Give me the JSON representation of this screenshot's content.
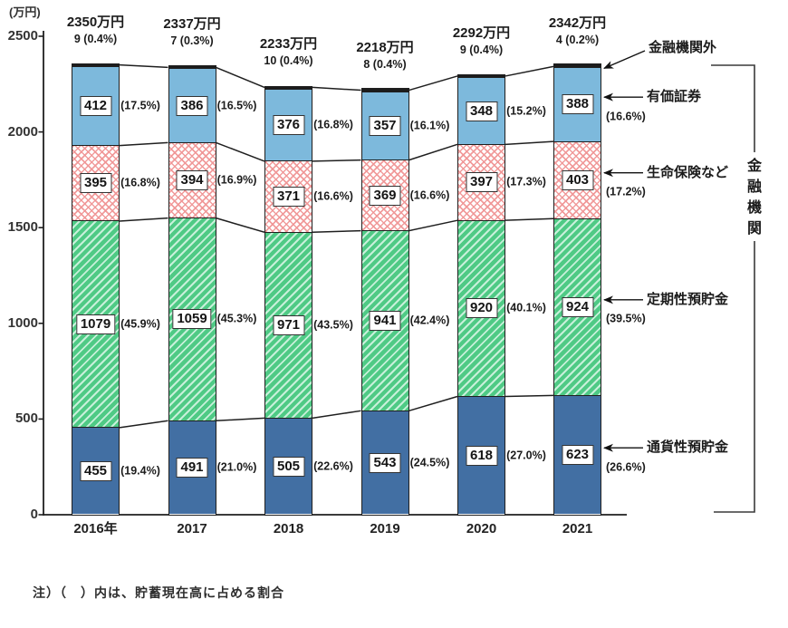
{
  "chart_data": {
    "type": "bar",
    "stacked": true,
    "unit_label": "(万円)",
    "ylim": [
      0,
      2500
    ],
    "yticks": [
      "0",
      "500",
      "1000",
      "1500",
      "2000",
      "2500"
    ],
    "grid": false,
    "legend_position": "right",
    "categories": [
      "2016年",
      "2017",
      "2018",
      "2019",
      "2020",
      "2021"
    ],
    "totals": {
      "labels": [
        "2350万円",
        "2337万円",
        "2233万円",
        "2218万円",
        "2292万円",
        "2342万円"
      ],
      "outside_labels": [
        "9 (0.4%)",
        "7 (0.3%)",
        "10 (0.4%)",
        "8 (0.4%)",
        "9 (0.4%)",
        "4 (0.2%)"
      ]
    },
    "series": [
      {
        "name": "通貨性預貯金",
        "key": "currency-deposits",
        "pattern": "solid-darkblue",
        "values": [
          455,
          491,
          505,
          543,
          618,
          623
        ],
        "pcts": [
          "(19.4%)",
          "(21.0%)",
          "(22.6%)",
          "(24.5%)",
          "(27.0%)",
          "(26.6%)"
        ]
      },
      {
        "name": "定期性預貯金",
        "key": "time-deposits",
        "pattern": "diag-green",
        "values": [
          1079,
          1059,
          971,
          941,
          920,
          924
        ],
        "pcts": [
          "(45.9%)",
          "(45.3%)",
          "(43.5%)",
          "(42.4%)",
          "(40.1%)",
          "(39.5%)"
        ]
      },
      {
        "name": "生命保険など",
        "key": "life-insurance",
        "pattern": "cross-pink",
        "values": [
          395,
          394,
          371,
          369,
          397,
          403
        ],
        "pcts": [
          "(16.8%)",
          "(16.9%)",
          "(16.6%)",
          "(16.6%)",
          "(17.3%)",
          "(17.2%)"
        ]
      },
      {
        "name": "有価証券",
        "key": "securities",
        "pattern": "solid-lightblue",
        "values": [
          412,
          386,
          376,
          357,
          348,
          388
        ],
        "pcts": [
          "(17.5%)",
          "(16.5%)",
          "(16.8%)",
          "(16.1%)",
          "(15.2%)",
          "(16.6%)"
        ]
      },
      {
        "name": "金融機関外",
        "key": "outside-financial-institutions",
        "pattern": "solid-black",
        "values": [
          9,
          7,
          10,
          8,
          9,
          4
        ],
        "pcts": null
      }
    ],
    "bracket_label": "金融機関",
    "note": "注）（　）内は、貯蓄現在高に占める割合",
    "colors": {
      "dark_blue": "#426fa3",
      "light_blue": "#7db9dc",
      "green": "#4fca85",
      "green_stripe": "#c8f0da",
      "pink": "#f09696",
      "line": "#1f1f1f",
      "text": "#1b1b1b"
    }
  }
}
